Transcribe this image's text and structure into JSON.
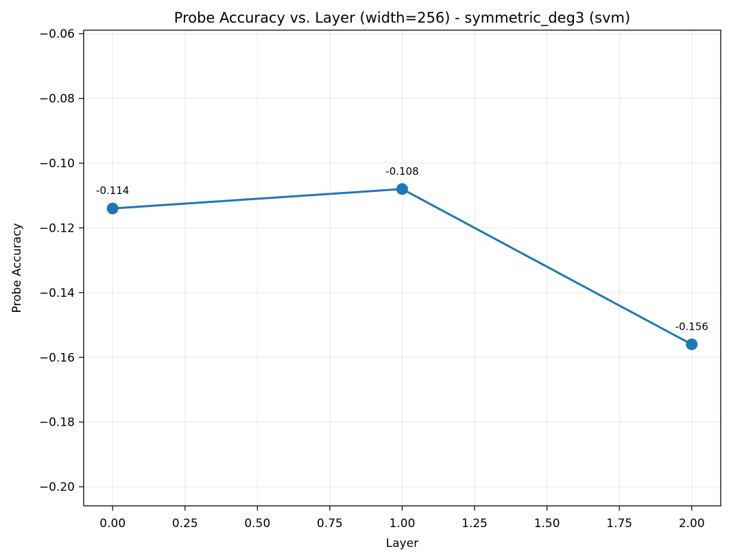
{
  "chart_data": {
    "type": "line",
    "title": "Probe Accuracy vs. Layer (width=256) - symmetric_deg3 (svm)",
    "xlabel": "Layer",
    "ylabel": "Probe Accuracy",
    "xlim": [
      -0.1,
      2.1
    ],
    "ylim": [
      -0.2059,
      -0.0589
    ],
    "grid": true,
    "legend": "none",
    "x_ticks": [
      0.0,
      0.25,
      0.5,
      0.75,
      1.0,
      1.25,
      1.5,
      1.75,
      2.0
    ],
    "x_tick_labels": [
      "0.00",
      "0.25",
      "0.50",
      "0.75",
      "1.00",
      "1.25",
      "1.50",
      "1.75",
      "2.00"
    ],
    "y_ticks": [
      -0.06,
      -0.08,
      -0.1,
      -0.12,
      -0.14,
      -0.16,
      -0.18,
      -0.2
    ],
    "y_tick_labels": [
      "−0.06",
      "−0.08",
      "−0.10",
      "−0.12",
      "−0.14",
      "−0.16",
      "−0.18",
      "−0.20"
    ],
    "series": [
      {
        "color": "#1f77b4",
        "x": [
          0,
          1,
          2
        ],
        "y": [
          -0.114,
          -0.108,
          -0.156
        ],
        "point_labels": [
          "-0.114",
          "-0.108",
          "-0.156"
        ]
      }
    ]
  }
}
